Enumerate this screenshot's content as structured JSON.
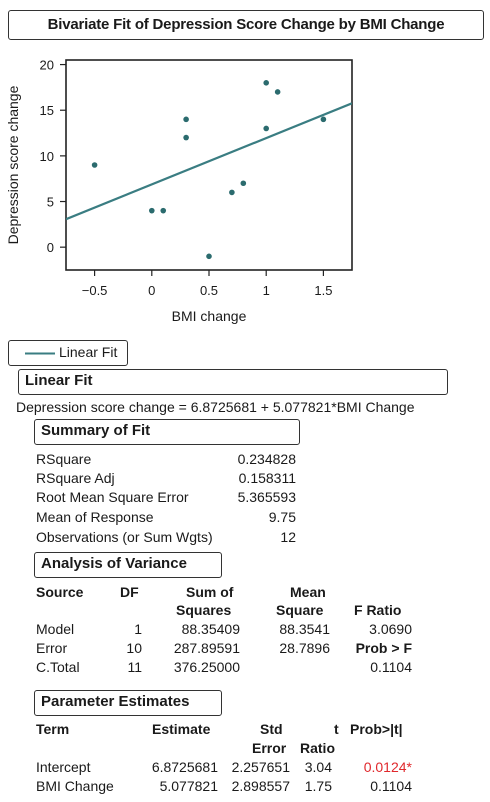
{
  "title": "Bivariate Fit of Depression Score Change by BMI Change",
  "chart_data": {
    "type": "scatter",
    "xlabel": "BMI change",
    "ylabel": "Depression score change",
    "xlim": [
      -0.75,
      1.75
    ],
    "ylim": [
      -2.5,
      20.5
    ],
    "xticks": [
      -0.5,
      0,
      0.5,
      1,
      1.5
    ],
    "xtick_labels": [
      "−0.5",
      "0",
      "0.5",
      "1",
      "1.5"
    ],
    "yticks": [
      0,
      5,
      10,
      15,
      20
    ],
    "ytick_labels": [
      "0",
      "5",
      "10",
      "15",
      "20"
    ],
    "points": [
      {
        "x": -0.5,
        "y": 9
      },
      {
        "x": 0.0,
        "y": 4
      },
      {
        "x": 0.1,
        "y": 4
      },
      {
        "x": 0.3,
        "y": 14
      },
      {
        "x": 0.3,
        "y": 12
      },
      {
        "x": 0.5,
        "y": -1
      },
      {
        "x": 0.7,
        "y": 6
      },
      {
        "x": 0.8,
        "y": 7
      },
      {
        "x": 1.0,
        "y": 18
      },
      {
        "x": 1.0,
        "y": 13
      },
      {
        "x": 1.1,
        "y": 17
      },
      {
        "x": 1.5,
        "y": 14
      }
    ],
    "fit_line": {
      "intercept": 6.8725681,
      "slope": 5.077821
    },
    "point_color": "#2b6b6e",
    "line_color": "#3a7d82",
    "legend_label": "Linear Fit",
    "grid": false
  },
  "linear_fit": {
    "header": "Linear Fit",
    "equation": "Depression score change = 6.8725681 + 5.077821*BMI Change"
  },
  "summary_of_fit": {
    "header": "Summary of Fit",
    "rows": [
      {
        "label": "RSquare",
        "value": "0.234828"
      },
      {
        "label": "RSquare Adj",
        "value": "0.158311"
      },
      {
        "label": "Root Mean Square Error",
        "value": "5.365593"
      },
      {
        "label": "Mean of Response",
        "value": "9.75"
      },
      {
        "label": "Observations (or Sum Wgts)",
        "value": "12"
      }
    ]
  },
  "anova": {
    "header": "Analysis of Variance",
    "col_source": "Source",
    "col_df": "DF",
    "col_ss_1": "Sum of",
    "col_ss_2": "Squares",
    "col_ms_1": "Mean",
    "col_ms_2": "Square",
    "col_f": "F Ratio",
    "rows": [
      {
        "source": "Model",
        "df": "1",
        "ss": "88.35409",
        "ms": "88.3541",
        "f": "3.0690"
      },
      {
        "source": "Error",
        "df": "10",
        "ss": "287.89591",
        "ms": "28.7896",
        "f": "Prob > F"
      },
      {
        "source": "C.Total",
        "df": "11",
        "ss": "376.25000",
        "ms": "",
        "f": "0.1104"
      }
    ]
  },
  "parameter_estimates": {
    "header": "Parameter Estimates",
    "col_term": "Term",
    "col_estimate": "Estimate",
    "col_std_1": "Std",
    "col_std_2": "Error",
    "col_t_1": "t",
    "col_t_2": "Ratio",
    "col_p": "Prob>|t|",
    "rows": [
      {
        "term": "Intercept",
        "estimate": "6.8725681",
        "std": "2.257651",
        "t": "3.04",
        "p": "0.0124*"
      },
      {
        "term": "BMI Change",
        "estimate": "5.077821",
        "std": "2.898557",
        "t": "1.75",
        "p": "0.1104"
      }
    ]
  }
}
